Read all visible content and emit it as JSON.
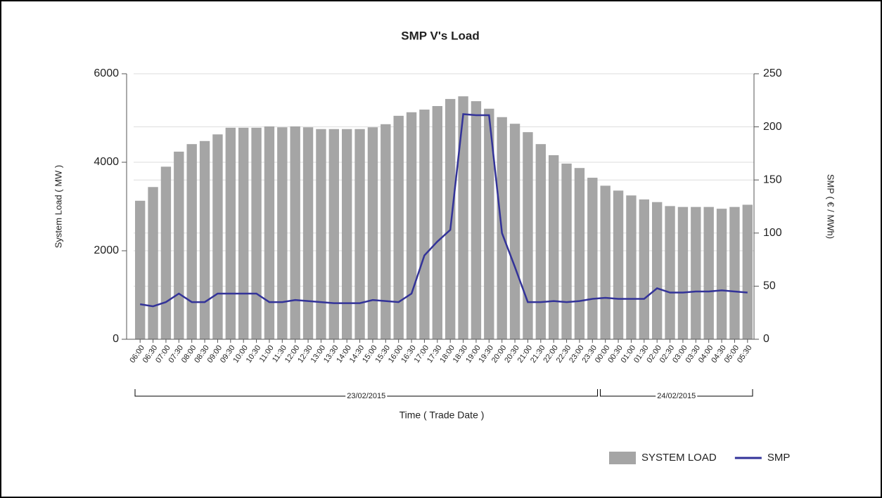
{
  "chart_data": {
    "type": "bar-line",
    "title": "SMP V's Load",
    "xlabel": "Time  ( Trade Date )",
    "ylabel": "System Load ( MW )",
    "y2label": "SMP ( € / MWh)",
    "groups": [
      {
        "label": "23/02/2015",
        "categories": [
          "06:00",
          "06:30",
          "07:00",
          "07:30",
          "08:00",
          "08:30",
          "09:00",
          "09:30",
          "10:00",
          "10:30",
          "11:00",
          "11:30",
          "12:00",
          "12:30",
          "13:00",
          "13:30",
          "14:00",
          "14:30",
          "15:00",
          "15:30",
          "16:00",
          "16:30",
          "17:00",
          "17:30",
          "18:00",
          "18:30",
          "19:00",
          "19:30",
          "20:00",
          "20:30",
          "21:00",
          "21:30",
          "22:00",
          "22:30",
          "23:00",
          "23:30"
        ]
      },
      {
        "label": "24/02/2015",
        "categories": [
          "00:00",
          "00:30",
          "01:00",
          "01:30",
          "02:00",
          "02:30",
          "03:00",
          "03:30",
          "04:00",
          "04:30",
          "05:00",
          "05:30"
        ]
      }
    ],
    "series": [
      {
        "name": "SYSTEM LOAD",
        "kind": "bar",
        "color": "#a5a5a5",
        "values": [
          3130,
          3440,
          3900,
          4240,
          4410,
          4480,
          4630,
          4780,
          4780,
          4780,
          4810,
          4790,
          4810,
          4790,
          4750,
          4750,
          4750,
          4750,
          4790,
          4860,
          5050,
          5130,
          5190,
          5270,
          5430,
          5490,
          5380,
          5210,
          5020,
          4870,
          4680,
          4410,
          4160,
          3970,
          3870,
          3650,
          3470,
          3360,
          3250,
          3160,
          3100,
          3010,
          2990,
          2990,
          2990,
          2950,
          2990,
          3040
        ]
      },
      {
        "name": "SMP",
        "kind": "line",
        "axis": "y2",
        "color": "#333399",
        "values": [
          33,
          31,
          35,
          43,
          35,
          35,
          43,
          43,
          43,
          43,
          35,
          35,
          37,
          36,
          35,
          34,
          34,
          34,
          37,
          36,
          35,
          43,
          79,
          92,
          103,
          212,
          211,
          211,
          100,
          68,
          35,
          35,
          36,
          35,
          36,
          38,
          39,
          38,
          38,
          38,
          48,
          44,
          44,
          45,
          45,
          46,
          45,
          44
        ]
      }
    ],
    "ylim": [
      0,
      6000
    ],
    "yticks": [
      0,
      2000,
      4000,
      6000
    ],
    "y2lim": [
      0,
      250
    ],
    "y2ticks": [
      0,
      50,
      100,
      150,
      200,
      250
    ],
    "grid": true,
    "legend": "bottom-right"
  }
}
